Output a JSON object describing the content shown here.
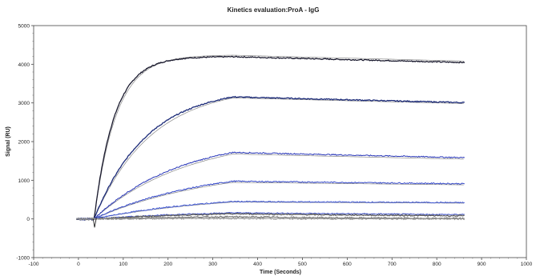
{
  "chart_data": {
    "type": "line",
    "title": "Kinetics evaluation:ProA - IgG",
    "xlabel": "Time (Seconds)",
    "ylabel": "Signal (RU)",
    "xlim": [
      -100,
      1000
    ],
    "ylim": [
      -1000,
      5000
    ],
    "xticks": [
      "-100",
      "0",
      "100",
      "200",
      "300",
      "400",
      "500",
      "600",
      "700",
      "800",
      "900",
      "1000"
    ],
    "yticks": [
      "-1000",
      "0",
      "1000",
      "2000",
      "3000",
      "4000",
      "5000"
    ],
    "grid": false,
    "legend": "none",
    "inject_time": 35,
    "end_association": 345,
    "end_time": 862,
    "series": [
      {
        "plateau": 4200,
        "final": 4050,
        "rate": 0.022,
        "color": "#1a1a2e"
      },
      {
        "plateau": 3400,
        "final": 3240,
        "rate": 0.0085,
        "color": "#1b2a78"
      },
      {
        "plateau": 2150,
        "final": 1980,
        "rate": 0.0052,
        "color": "#2836b8"
      },
      {
        "plateau": 1340,
        "final": 1250,
        "rate": 0.0042,
        "color": "#3246c8"
      },
      {
        "plateau": 650,
        "final": 610,
        "rate": 0.0038,
        "color": "#3d55d4"
      },
      {
        "plateau": 240,
        "final": 170,
        "rate": 0.0035,
        "color": "#4c5fd0"
      },
      {
        "plateau": 200,
        "final": 120,
        "rate": 0.0035,
        "color": "#555555"
      },
      {
        "plateau": 80,
        "final": 20,
        "rate": 0.004,
        "color": "#777777"
      },
      {
        "plateau": 20,
        "final": -40,
        "rate": 0.004,
        "color": "#999999"
      }
    ]
  }
}
